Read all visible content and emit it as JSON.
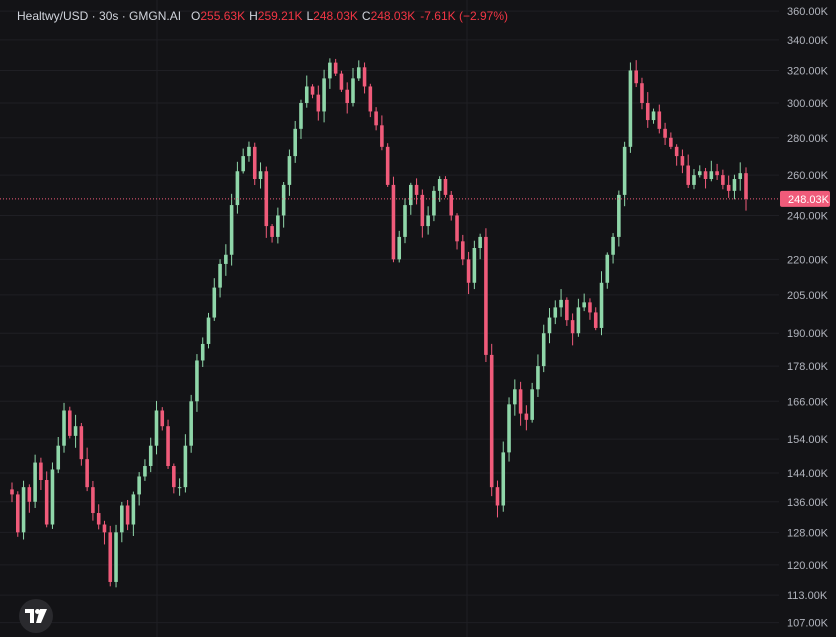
{
  "legend": {
    "symbol": "Healtwy/USD · 30s · GMGN.AI",
    "open_label": "O",
    "open": "255.63K",
    "high_label": "H",
    "high": "259.21K",
    "low_label": "L",
    "low": "248.03K",
    "close_label": "C",
    "close": "248.03K",
    "change": "-7.61K (−2.97%)"
  },
  "price_label": "248.03K",
  "colors": {
    "up": "#8fd6a9",
    "down": "#f05b7a",
    "bg": "#131316",
    "grid": "#1f1f24",
    "axis_text": "#b2b5be"
  },
  "chart_data": {
    "type": "candlestick",
    "title": "",
    "yscale": "log",
    "ylim": [
      104,
      368
    ],
    "current_price": 248.03,
    "y_ticks": [
      {
        "value": 360,
        "label": "360.00K"
      },
      {
        "value": 340,
        "label": "340.00K"
      },
      {
        "value": 320,
        "label": "320.00K"
      },
      {
        "value": 300,
        "label": "300.00K"
      },
      {
        "value": 280,
        "label": "280.00K"
      },
      {
        "value": 260,
        "label": "260.00K"
      },
      {
        "value": 240,
        "label": "240.00K"
      },
      {
        "value": 220,
        "label": "220.00K"
      },
      {
        "value": 205,
        "label": "205.00K"
      },
      {
        "value": 190,
        "label": "190.00K"
      },
      {
        "value": 178,
        "label": "178.00K"
      },
      {
        "value": 166,
        "label": "166.00K"
      },
      {
        "value": 154,
        "label": "154.00K"
      },
      {
        "value": 144,
        "label": "144.00K"
      },
      {
        "value": 136,
        "label": "136.00K"
      },
      {
        "value": 128,
        "label": "128.00K"
      },
      {
        "value": 120,
        "label": "120.00K"
      },
      {
        "value": 113,
        "label": "113.00K"
      },
      {
        "value": 107,
        "label": "107.00K"
      }
    ],
    "close_path": [
      138,
      128,
      140,
      136,
      147,
      142,
      130,
      145,
      152,
      163,
      155,
      158,
      148,
      140,
      133,
      130,
      128,
      116,
      128,
      135,
      130,
      138,
      143,
      146,
      152,
      163,
      158,
      146,
      140,
      140,
      152,
      166,
      180,
      186,
      196,
      208,
      218,
      222,
      245,
      262,
      270,
      275,
      258,
      262,
      235,
      230,
      240,
      255,
      270,
      285,
      300,
      310,
      305,
      295,
      315,
      325,
      318,
      308,
      300,
      315,
      322,
      310,
      295,
      287,
      275,
      255,
      220,
      230,
      245,
      255,
      250,
      235,
      240,
      252,
      258,
      250,
      240,
      228,
      220,
      210,
      225,
      230,
      182,
      140,
      135,
      150,
      165,
      170,
      162,
      160,
      170,
      178,
      190,
      196,
      200,
      203,
      195,
      190,
      200,
      202,
      198,
      192,
      210,
      222,
      230,
      250,
      275,
      320,
      312,
      300,
      290,
      295,
      285,
      280,
      275,
      270,
      265,
      255,
      260,
      262,
      258,
      262,
      260,
      255,
      252,
      258,
      261,
      248.03
    ]
  }
}
